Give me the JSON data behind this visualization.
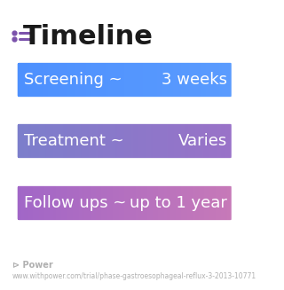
{
  "title": "Timeline",
  "title_fontsize": 22,
  "title_color": "#1a1a1a",
  "title_icon_color1": "#7b52ab",
  "title_icon_color2": "#7b52ab",
  "background_color": "#ffffff",
  "rows": [
    {
      "label": "Screening ~",
      "value": "3 weeks",
      "color_left": "#4d90fe",
      "color_right": "#5b9cff"
    },
    {
      "label": "Treatment ~",
      "value": "Varies",
      "color_left": "#7b7fcc",
      "color_right": "#9b72c8"
    },
    {
      "label": "Follow ups ~",
      "value": "up to 1 year",
      "color_left": "#a066c8",
      "color_right": "#c87ab8"
    }
  ],
  "footer_logo_color": "#b0b0b0",
  "footer_text": "www.withpower.com/trial/phase-gastroesophageal-reflux-3-2013-10771",
  "footer_fontsize": 5.5,
  "label_fontsize": 13,
  "value_fontsize": 13
}
